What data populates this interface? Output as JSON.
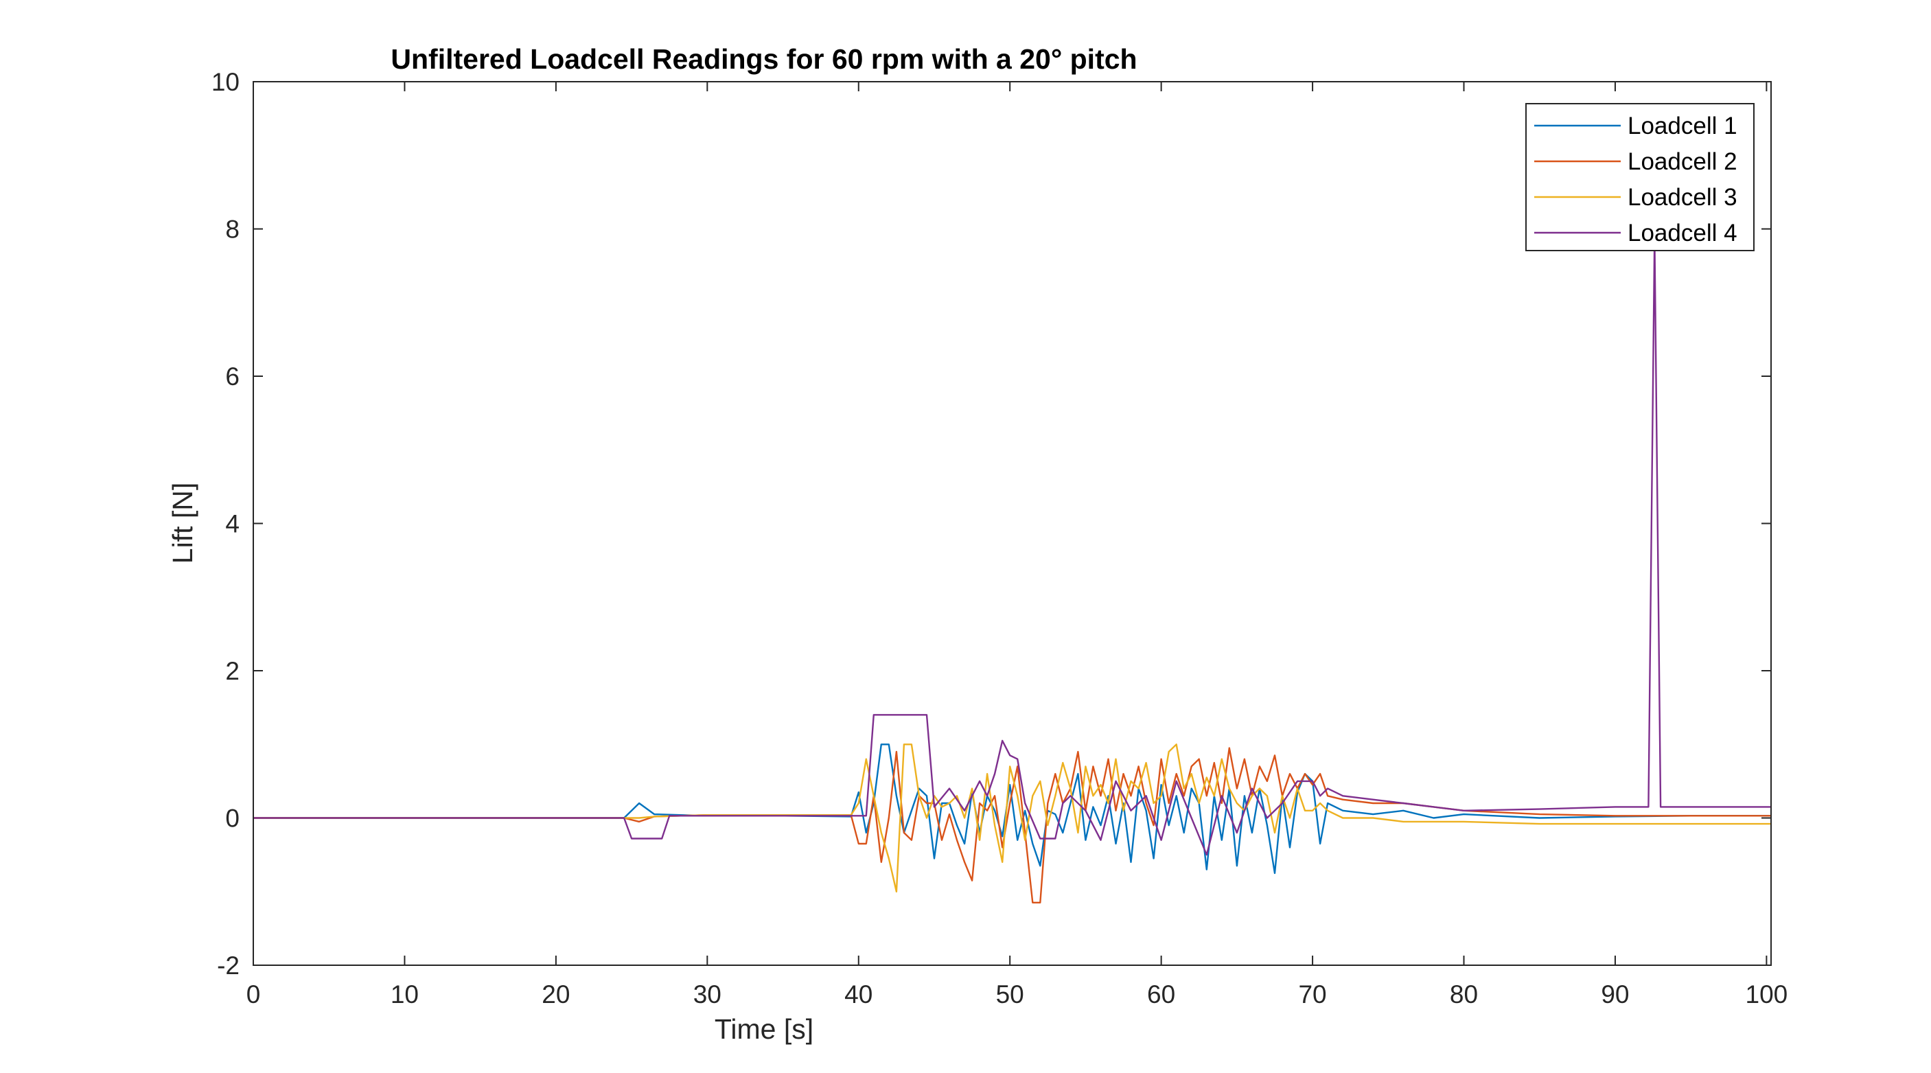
{
  "chart_data": {
    "type": "line",
    "title": "Unfiltered Loadcell Readings for 60 rpm with a 20° pitch",
    "xlabel": "Time [s]",
    "ylabel": "Lift [N]",
    "xlim": [
      0,
      100.3
    ],
    "ylim": [
      -2,
      10
    ],
    "xticks": [
      0,
      10,
      20,
      30,
      40,
      50,
      60,
      70,
      80,
      90,
      100
    ],
    "yticks": [
      -2,
      0,
      2,
      4,
      6,
      8,
      10
    ],
    "grid": false,
    "legend_position": "top-right",
    "series": [
      {
        "name": "Loadcell 1",
        "color": "#0072BD",
        "x": [
          0,
          5,
          10,
          15,
          20,
          24.5,
          25.5,
          26.5,
          30,
          35,
          39.5,
          40.0,
          40.5,
          41.0,
          41.5,
          42.0,
          42.5,
          43.0,
          43.5,
          44.0,
          44.5,
          45.0,
          45.5,
          46.0,
          46.5,
          47.0,
          47.5,
          48.0,
          48.5,
          49.0,
          49.5,
          50.0,
          50.5,
          51.0,
          51.5,
          52.0,
          52.5,
          53.0,
          53.5,
          54.0,
          54.5,
          55.0,
          55.5,
          56.0,
          56.5,
          57.0,
          57.5,
          58.0,
          58.5,
          59.0,
          59.5,
          60.0,
          60.5,
          61.0,
          61.5,
          62.0,
          62.5,
          63.0,
          63.5,
          64.0,
          64.5,
          65.0,
          65.5,
          66.0,
          66.5,
          67.0,
          67.5,
          68.0,
          68.5,
          69.0,
          69.5,
          70.0,
          70.5,
          71.0,
          72,
          74,
          76,
          78,
          80,
          85,
          90,
          95,
          100.3
        ],
        "y": [
          0,
          0,
          0,
          0,
          0,
          0,
          0.2,
          0.05,
          0.03,
          0.03,
          0.02,
          0.35,
          -0.2,
          0.2,
          1.0,
          1.0,
          0.3,
          -0.2,
          0.1,
          0.4,
          0.3,
          -0.55,
          0.2,
          0.2,
          -0.1,
          -0.35,
          0.35,
          -0.2,
          0.3,
          0.1,
          -0.25,
          0.45,
          -0.3,
          0.1,
          -0.35,
          -0.65,
          0.1,
          0.05,
          -0.2,
          0.2,
          0.6,
          -0.3,
          0.15,
          -0.1,
          0.3,
          -0.35,
          0.2,
          -0.6,
          0.4,
          0.1,
          -0.55,
          0.45,
          -0.1,
          0.3,
          -0.2,
          0.4,
          0.2,
          -0.7,
          0.3,
          -0.3,
          0.4,
          -0.65,
          0.3,
          -0.2,
          0.4,
          -0.1,
          -0.75,
          0.3,
          -0.4,
          0.35,
          0.6,
          0.5,
          -0.35,
          0.2,
          0.1,
          0.05,
          0.1,
          0.0,
          0.05,
          0.0,
          0.02,
          0.03,
          0.03
        ]
      },
      {
        "name": "Loadcell 2",
        "color": "#D95319",
        "x": [
          0,
          5,
          10,
          15,
          20,
          24.5,
          25.5,
          26.5,
          30,
          35,
          39.5,
          40.0,
          40.5,
          41.0,
          41.5,
          42.0,
          42.5,
          43.0,
          43.5,
          44.0,
          44.5,
          45.0,
          45.5,
          46.0,
          46.5,
          47.0,
          47.5,
          48.0,
          48.5,
          49.0,
          49.5,
          50.0,
          50.5,
          51.0,
          51.5,
          52.0,
          52.5,
          53.0,
          53.5,
          54.0,
          54.5,
          55.0,
          55.5,
          56.0,
          56.5,
          57.0,
          57.5,
          58.0,
          58.5,
          59.0,
          59.5,
          60.0,
          60.5,
          61.0,
          61.5,
          62.0,
          62.5,
          63.0,
          63.5,
          64.0,
          64.5,
          65.0,
          65.5,
          66.0,
          66.5,
          67.0,
          67.5,
          68.0,
          68.5,
          69.0,
          69.5,
          70.0,
          70.5,
          71.0,
          72,
          74,
          76,
          78,
          80,
          85,
          90,
          95,
          100.3
        ],
        "y": [
          0,
          0,
          0,
          0,
          0,
          0,
          -0.05,
          0.02,
          0.04,
          0.04,
          0.04,
          -0.35,
          -0.35,
          0.3,
          -0.6,
          0.0,
          0.9,
          -0.2,
          -0.3,
          0.3,
          0.2,
          0.2,
          -0.3,
          0.05,
          -0.3,
          -0.6,
          -0.85,
          0.2,
          0.1,
          0.3,
          -0.4,
          0.2,
          0.7,
          -0.2,
          -1.15,
          -1.15,
          0.2,
          0.6,
          0.2,
          0.4,
          0.9,
          0.1,
          0.7,
          0.3,
          0.8,
          0.1,
          0.6,
          0.3,
          0.7,
          0.2,
          -0.1,
          0.8,
          0.2,
          0.6,
          0.3,
          0.7,
          0.8,
          0.3,
          0.75,
          0.2,
          0.95,
          0.4,
          0.8,
          0.3,
          0.7,
          0.5,
          0.85,
          0.3,
          0.6,
          0.4,
          0.6,
          0.45,
          0.6,
          0.3,
          0.25,
          0.2,
          0.2,
          0.15,
          0.1,
          0.05,
          0.03,
          0.03,
          0.03
        ]
      },
      {
        "name": "Loadcell 3",
        "color": "#EDB120",
        "x": [
          0,
          5,
          10,
          15,
          20,
          24.5,
          25.5,
          26.5,
          30,
          35,
          39.5,
          40.0,
          40.5,
          41.0,
          41.5,
          42.0,
          42.5,
          43.0,
          43.5,
          44.0,
          44.5,
          45.0,
          45.5,
          46.0,
          46.5,
          47.0,
          47.5,
          48.0,
          48.5,
          49.0,
          49.5,
          50.0,
          50.5,
          51.0,
          51.5,
          52.0,
          52.5,
          53.0,
          53.5,
          54.0,
          54.5,
          55.0,
          55.5,
          56.0,
          56.5,
          57.0,
          57.5,
          58.0,
          58.5,
          59.0,
          59.5,
          60.0,
          60.5,
          61.0,
          61.5,
          62.0,
          62.5,
          63.0,
          63.5,
          64.0,
          64.5,
          65.0,
          65.5,
          66.0,
          66.5,
          67.0,
          67.5,
          68.0,
          68.5,
          69.0,
          69.5,
          70.0,
          70.5,
          71.0,
          72,
          74,
          76,
          78,
          80,
          85,
          90,
          95,
          100.3
        ],
        "y": [
          0,
          0,
          0,
          0,
          0,
          0,
          0.0,
          0.02,
          0.04,
          0.04,
          0.04,
          0.2,
          0.8,
          0.3,
          -0.2,
          -0.55,
          -1.0,
          1.0,
          1.0,
          0.3,
          0.0,
          0.3,
          0.15,
          0.2,
          0.3,
          0.0,
          0.4,
          -0.3,
          0.6,
          -0.1,
          -0.6,
          0.7,
          0.3,
          -0.3,
          0.3,
          0.5,
          -0.1,
          0.3,
          0.75,
          0.4,
          -0.2,
          0.7,
          0.3,
          0.45,
          0.2,
          0.8,
          0.1,
          0.5,
          0.4,
          0.75,
          0.2,
          0.3,
          0.9,
          1.0,
          0.4,
          0.6,
          0.2,
          0.55,
          0.3,
          0.8,
          0.4,
          0.2,
          0.1,
          0.3,
          0.4,
          0.3,
          -0.2,
          0.3,
          0.0,
          0.4,
          0.1,
          0.1,
          0.2,
          0.1,
          0.0,
          0.0,
          -0.05,
          -0.05,
          -0.05,
          -0.08,
          -0.08,
          -0.08,
          -0.08
        ]
      },
      {
        "name": "Loadcell 4",
        "color": "#7E2F8E",
        "x": [
          0,
          5,
          10,
          15,
          20,
          24.5,
          25.0,
          27.0,
          27.5,
          30,
          35,
          40.5,
          41.0,
          41.5,
          44.5,
          45.0,
          46.0,
          47.0,
          48.0,
          48.5,
          49.0,
          49.5,
          50.0,
          50.5,
          51.0,
          52.0,
          53.0,
          53.5,
          54.0,
          55.0,
          56.0,
          57.0,
          58.0,
          59.0,
          60.0,
          61.0,
          62.0,
          63.0,
          64.0,
          65.0,
          66.0,
          67.0,
          68.0,
          69.0,
          70.0,
          70.5,
          71.0,
          72.0,
          74.0,
          76.0,
          78.0,
          80.0,
          85.0,
          90.0,
          92.2,
          92.6,
          93.0,
          95.0,
          100.3
        ],
        "y": [
          0,
          0,
          0,
          0,
          0,
          0,
          -0.28,
          -0.28,
          0.03,
          0.03,
          0.03,
          0.03,
          1.4,
          1.4,
          1.4,
          0.15,
          0.4,
          0.1,
          0.5,
          0.3,
          0.6,
          1.05,
          0.85,
          0.8,
          0.2,
          -0.28,
          -0.28,
          0.2,
          0.3,
          0.1,
          -0.3,
          0.5,
          0.1,
          0.3,
          -0.3,
          0.5,
          0.0,
          -0.5,
          0.3,
          -0.2,
          0.4,
          0.0,
          0.2,
          0.5,
          0.5,
          0.3,
          0.4,
          0.3,
          0.25,
          0.2,
          0.15,
          0.1,
          0.12,
          0.15,
          0.15,
          7.9,
          0.15,
          0.15,
          0.15
        ]
      }
    ]
  }
}
